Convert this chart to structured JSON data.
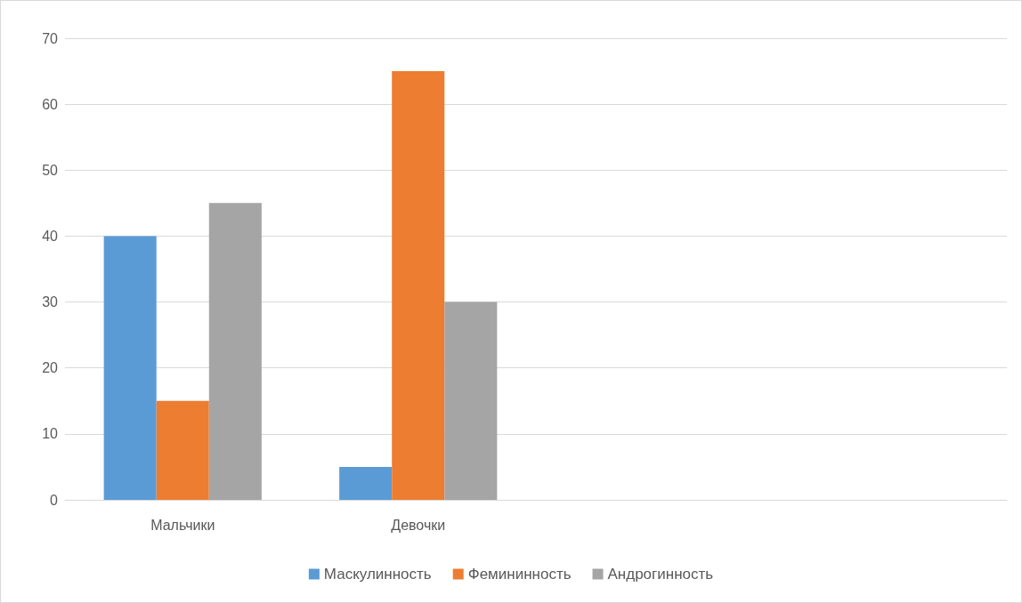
{
  "chart_data": {
    "type": "bar",
    "categories": [
      "Мальчики",
      "Девочки",
      null,
      null
    ],
    "series": [
      {
        "name": "Маскулинность",
        "color": "#5b9bd5",
        "values": [
          40,
          5,
          null,
          null
        ]
      },
      {
        "name": "Фемининность",
        "color": "#ed7d31",
        "values": [
          15,
          65,
          null,
          null
        ]
      },
      {
        "name": "Андрогинность",
        "color": "#a5a5a5",
        "values": [
          45,
          30,
          null,
          null
        ]
      }
    ],
    "ylim": [
      0,
      70
    ],
    "yticks": [
      0,
      10,
      20,
      30,
      40,
      50,
      60,
      70
    ],
    "grid": "y",
    "legend": "bottom"
  }
}
